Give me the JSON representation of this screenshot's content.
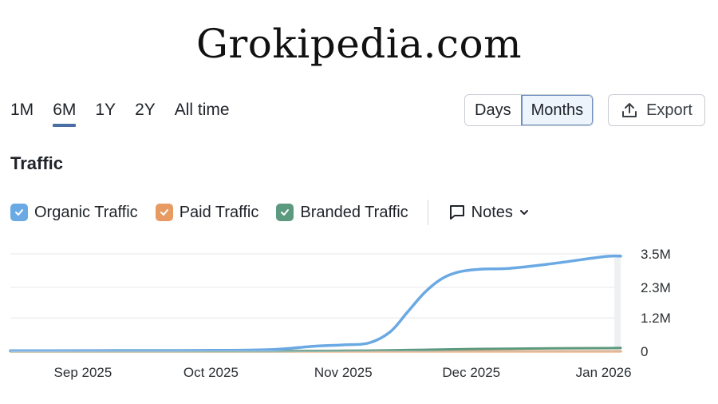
{
  "header": {
    "title": "Grokipedia.com"
  },
  "periods": [
    "1M",
    "6M",
    "1Y",
    "2Y",
    "All time"
  ],
  "active_period": "6M",
  "granularity": {
    "options": [
      "Days",
      "Months"
    ],
    "selected": "Months"
  },
  "export_label": "Export",
  "section_title": "Traffic",
  "legend": {
    "organic": "Organic Traffic",
    "paid": "Paid Traffic",
    "branded": "Branded Traffic",
    "notes": "Notes"
  },
  "colors": {
    "organic": "#6aa9e3",
    "paid": "#e79b62",
    "branded": "#5c9a80",
    "accent": "#4a6fa5"
  },
  "icons": {
    "export": "upload-icon",
    "notes": "comment-icon",
    "dropdown": "chevron-down-icon"
  },
  "chart_data": {
    "type": "line",
    "x": [
      "2025-08-15",
      "2025-09-01",
      "2025-09-15",
      "2025-10-01",
      "2025-10-15",
      "2025-10-25",
      "2025-11-01",
      "2025-11-07",
      "2025-11-12",
      "2025-11-16",
      "2025-11-20",
      "2025-11-24",
      "2025-11-28",
      "2025-12-03",
      "2025-12-10",
      "2025-12-20",
      "2026-01-01",
      "2026-01-05"
    ],
    "x_ticks": [
      "Sep 2025",
      "Oct 2025",
      "Nov 2025",
      "Dec 2025",
      "Jan 2026"
    ],
    "y_ticks": [
      "0",
      "1.2M",
      "2.3M",
      "3.5M"
    ],
    "ylim": [
      0,
      3500000
    ],
    "grid": true,
    "series": [
      {
        "name": "Organic Traffic",
        "values": [
          20000,
          25000,
          30000,
          35000,
          60000,
          180000,
          230000,
          300000,
          700000,
          1400000,
          2100000,
          2600000,
          2850000,
          2950000,
          2980000,
          3150000,
          3400000,
          3420000
        ]
      },
      {
        "name": "Paid Traffic",
        "values": [
          0,
          0,
          0,
          0,
          0,
          0,
          0,
          0,
          0,
          0,
          0,
          0,
          0,
          0,
          0,
          0,
          0,
          0
        ]
      },
      {
        "name": "Branded Traffic",
        "values": [
          5000,
          6000,
          7000,
          8000,
          10000,
          15000,
          20000,
          25000,
          35000,
          45000,
          55000,
          65000,
          75000,
          85000,
          95000,
          105000,
          115000,
          120000
        ]
      }
    ]
  }
}
